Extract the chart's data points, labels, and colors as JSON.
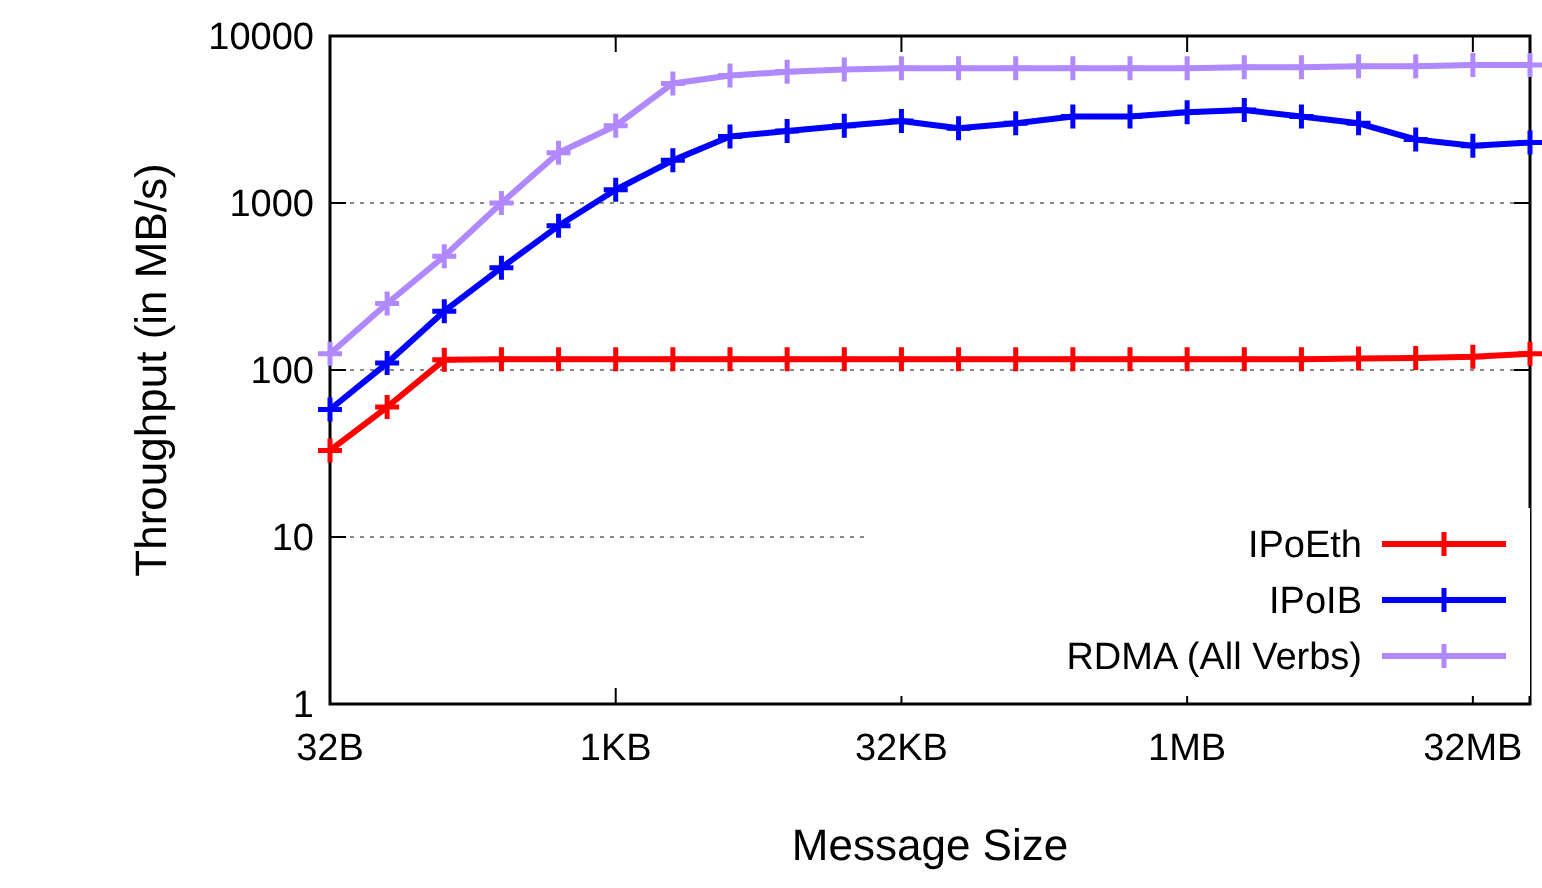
{
  "chart_data": {
    "type": "line",
    "xlabel": "Message Size",
    "ylabel": "Throughput (in MB/s)",
    "log": "y",
    "grid": "y",
    "legend": "bottom right",
    "marker": "cross",
    "line_style": "solid",
    "categories": [
      "32B",
      null,
      null,
      null,
      null,
      "1KB",
      null,
      null,
      null,
      null,
      "32KB",
      null,
      null,
      null,
      null,
      "1MB",
      null,
      null,
      null,
      null,
      "32MB",
      null
    ],
    "ylim": [
      1,
      10000
    ],
    "yticks": [
      1,
      10,
      100,
      1000,
      10000
    ],
    "series": [
      {
        "name": "IPoEth",
        "color": "#ff0000",
        "values": [
          33,
          60,
          115,
          116,
          116,
          116,
          116,
          116,
          116,
          116,
          116,
          116,
          116,
          116,
          116,
          116,
          116,
          116,
          117,
          118,
          120,
          125
        ]
      },
      {
        "name": "IPoIB",
        "color": "#0000ff",
        "values": [
          58,
          110,
          225,
          410,
          730,
          1200,
          1800,
          2500,
          2700,
          2900,
          3100,
          2800,
          3000,
          3300,
          3300,
          3500,
          3600,
          3300,
          3000,
          2400,
          2200,
          2300
        ]
      },
      {
        "name": "RDMA (All Verbs)",
        "color": "#b088ff",
        "values": [
          125,
          250,
          480,
          1000,
          2000,
          2900,
          5200,
          5800,
          6100,
          6300,
          6400,
          6400,
          6400,
          6400,
          6400,
          6400,
          6500,
          6500,
          6600,
          6600,
          6700,
          6700
        ]
      }
    ]
  }
}
